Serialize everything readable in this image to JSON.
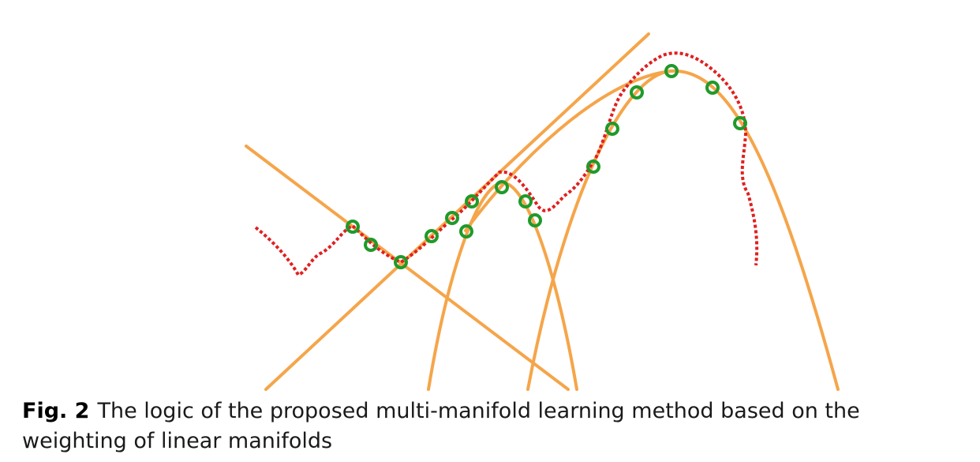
{
  "figure": {
    "colors": {
      "manifold_lines": "#f5a54a",
      "data_curve": "#e02020",
      "sample_points": "#1f9a2a"
    },
    "elements": [
      "linear-manifold-line",
      "linear-manifold-line",
      "parabolic-manifold-curve",
      "parabolic-manifold-curve",
      "parabolic-manifold-curve",
      "data-curve",
      "sample-points"
    ]
  },
  "caption": {
    "label": "Fig. 2",
    "text": "The logic of the proposed multi-manifold learning method based on the weighting of linear manifolds"
  }
}
